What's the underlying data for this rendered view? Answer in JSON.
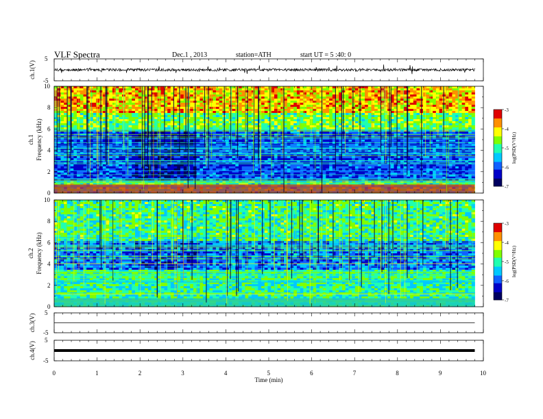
{
  "header": {
    "title": "VLF Spectra",
    "date": "Dec.1 , 2013",
    "station": "station=ATH",
    "start_ut": "start UT = 5 :40: 0"
  },
  "chart_data": [
    {
      "type": "line",
      "panel": "waveform-ch1",
      "ylabel": "ch.1(V)",
      "ylim": [
        -5,
        5
      ],
      "yticks": [
        "5",
        "-5"
      ],
      "xlim": [
        0,
        10
      ],
      "baseline": 0
    },
    {
      "type": "heatmap",
      "panel": "spectrogram-ch1",
      "ylabel": "ch.1\nFrequency (kHz)",
      "ylim": [
        0,
        10
      ],
      "yticks": [
        "0",
        "2",
        "4",
        "6",
        "8",
        "10"
      ],
      "xlim": [
        0,
        9.8
      ],
      "colorbar": {
        "label": "log(PSD(V²/Hz)",
        "range": [
          -7,
          -3
        ],
        "ticks": [
          "-3",
          "-4",
          "-5",
          "-6",
          "-7"
        ]
      }
    },
    {
      "type": "heatmap",
      "panel": "spectrogram-ch2",
      "ylabel": "ch.2\nFrequency (kHz)",
      "ylim": [
        0,
        10
      ],
      "yticks": [
        "0",
        "2",
        "4",
        "6",
        "8",
        "10"
      ],
      "xlim": [
        0,
        9.8
      ],
      "colorbar": {
        "label": "log(PSD(V²/Hz)",
        "range": [
          -7,
          -3
        ],
        "ticks": [
          "-3",
          "-4",
          "-5",
          "-6",
          "-7"
        ]
      }
    },
    {
      "type": "line",
      "panel": "waveform-ch3",
      "ylabel": "ch.3(V)",
      "ylim": [
        -5,
        5
      ],
      "yticks": [
        "5",
        "-5"
      ],
      "xlim": [
        0,
        10
      ],
      "baseline": 0
    },
    {
      "type": "line",
      "panel": "waveform-ch4",
      "ylabel": "ch.4(V)",
      "ylim": [
        -5,
        5
      ],
      "yticks": [
        "5",
        "-5"
      ],
      "xlim": [
        0,
        10
      ],
      "baseline": 0
    }
  ],
  "xaxis": {
    "label": "Time (min)",
    "ticks": [
      "0",
      "1",
      "2",
      "3",
      "4",
      "5",
      "6",
      "7",
      "8",
      "9",
      "10"
    ]
  },
  "colors": {
    "colormap": [
      "#000060",
      "#0000c8",
      "#1060ff",
      "#00c8ff",
      "#20ffb0",
      "#7fff00",
      "#ffff00",
      "#ff9000",
      "#e00000",
      "#ffffff"
    ],
    "trace": "#000000"
  }
}
